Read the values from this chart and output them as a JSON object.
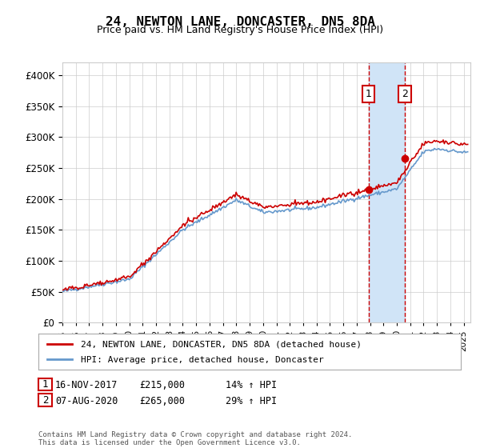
{
  "title": "24, NEWTON LANE, DONCASTER, DN5 8DA",
  "subtitle": "Price paid vs. HM Land Registry's House Price Index (HPI)",
  "footer": "Contains HM Land Registry data © Crown copyright and database right 2024.\nThis data is licensed under the Open Government Licence v3.0.",
  "legend_line1": "24, NEWTON LANE, DONCASTER, DN5 8DA (detached house)",
  "legend_line2": "HPI: Average price, detached house, Doncaster",
  "annotation1": {
    "num": "1",
    "date": "16-NOV-2017",
    "price": "£215,000",
    "pct": "14% ↑ HPI"
  },
  "annotation2": {
    "num": "2",
    "date": "07-AUG-2020",
    "price": "£265,000",
    "pct": "29% ↑ HPI"
  },
  "ylim": [
    0,
    420000
  ],
  "yticks": [
    0,
    50000,
    100000,
    150000,
    200000,
    250000,
    300000,
    350000,
    400000
  ],
  "xlim_start": 1995.0,
  "xlim_end": 2025.5,
  "red_color": "#cc0000",
  "blue_color": "#6699cc",
  "shaded_color": "#d0e4f7",
  "vline_color": "#cc0000",
  "background_color": "#ffffff",
  "grid_color": "#cccccc",
  "sale1_x": 2017.88,
  "sale1_y": 215000,
  "sale2_x": 2020.59,
  "sale2_y": 265000
}
